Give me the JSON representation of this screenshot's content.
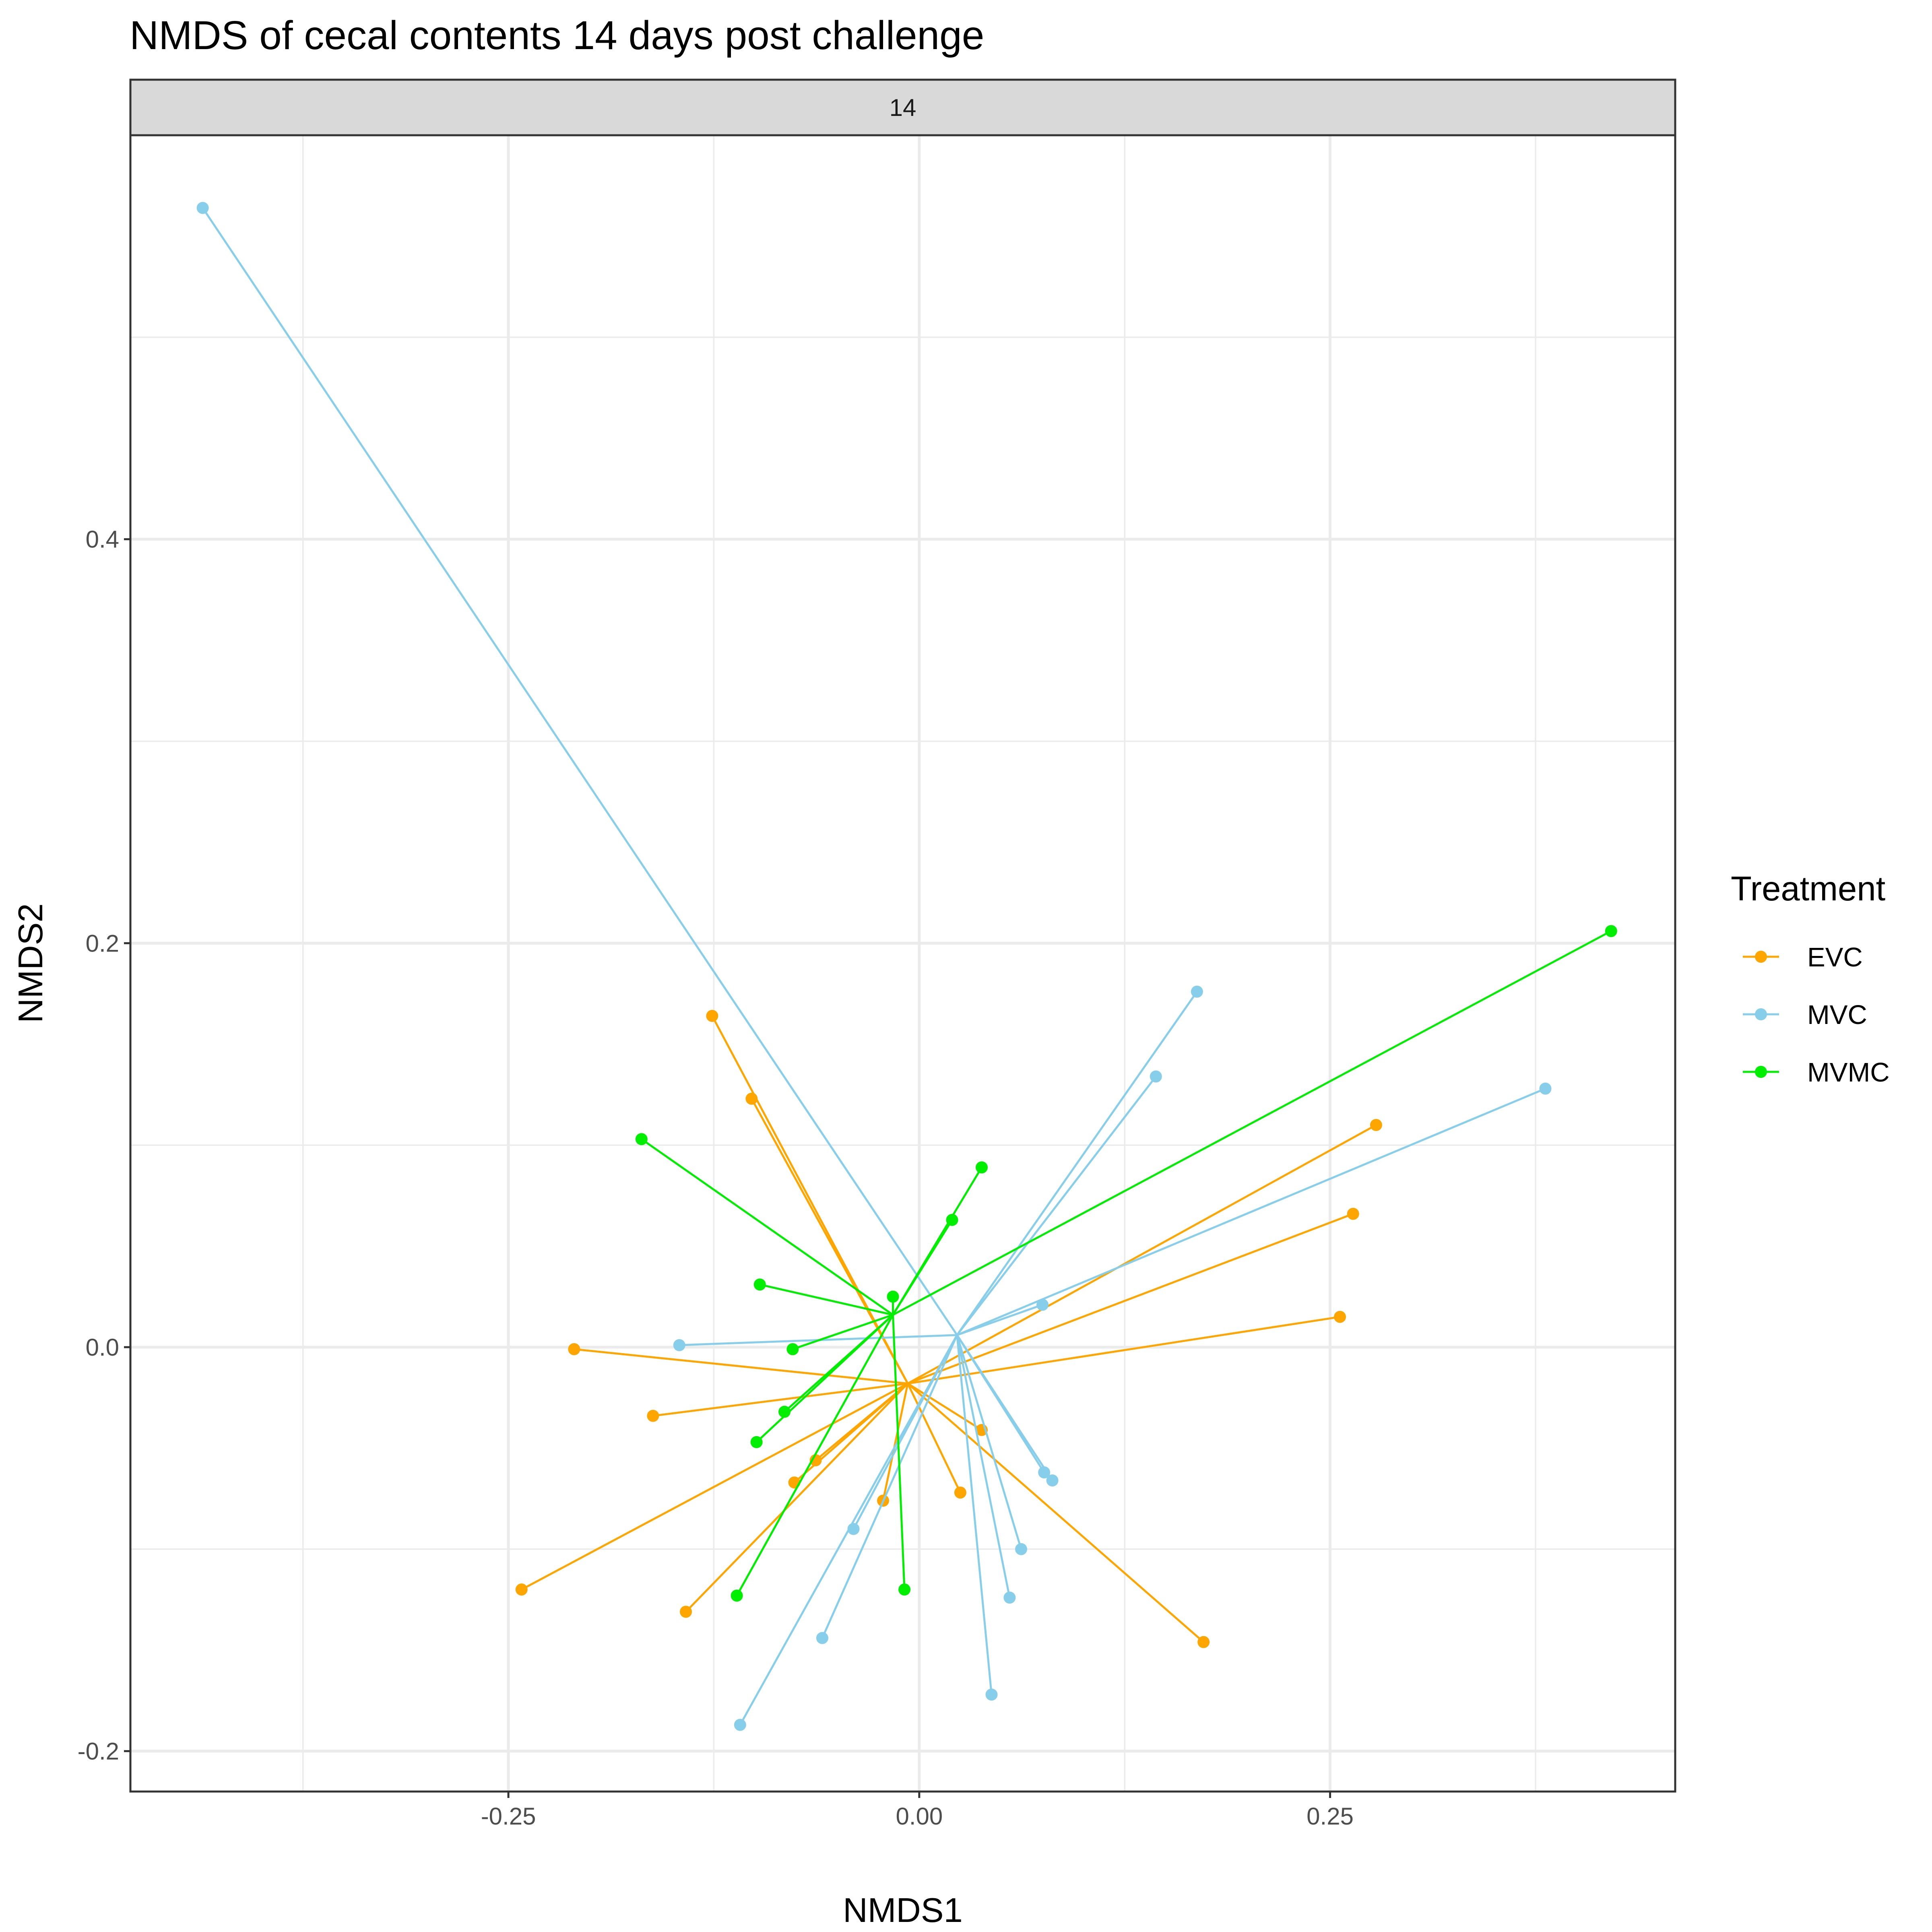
{
  "chart_data": {
    "type": "scatter",
    "title": "NMDS of cecal contents 14 days post challenge",
    "facet_label": "14",
    "xlabel": "NMDS1",
    "ylabel": "NMDS2",
    "xlim": [
      -0.48,
      0.46
    ],
    "ylim": [
      -0.22,
      0.6
    ],
    "x_ticks": [
      -0.25,
      0.0,
      0.25
    ],
    "x_tick_labels": [
      "-0.25",
      "0.00",
      "0.25"
    ],
    "y_ticks": [
      -0.2,
      0.0,
      0.2,
      0.4
    ],
    "y_tick_labels": [
      "-0.2",
      "0.0",
      "0.2",
      "0.4"
    ],
    "grid": true,
    "legend": {
      "title": "Treatment",
      "position": "right"
    },
    "plot_style": "spider (each point joined to its group centroid)",
    "series": [
      {
        "name": "EVC",
        "color": "#FFA500",
        "centroid": [
          -0.007,
          -0.018
        ],
        "points": [
          [
            -0.126,
            0.164
          ],
          [
            -0.102,
            0.123
          ],
          [
            -0.21,
            -0.001
          ],
          [
            -0.162,
            -0.034
          ],
          [
            -0.242,
            -0.12
          ],
          [
            -0.142,
            -0.131
          ],
          [
            -0.063,
            -0.056
          ],
          [
            -0.076,
            -0.067
          ],
          [
            -0.022,
            -0.076
          ],
          [
            0.038,
            -0.041
          ],
          [
            0.025,
            -0.072
          ],
          [
            0.173,
            -0.146
          ],
          [
            0.256,
            0.015
          ],
          [
            0.264,
            0.066
          ],
          [
            0.278,
            0.11
          ]
        ]
      },
      {
        "name": "MVC",
        "color": "#87CEEB",
        "centroid": [
          0.023,
          0.006
        ],
        "points": [
          [
            -0.436,
            0.564
          ],
          [
            -0.146,
            0.001
          ],
          [
            -0.04,
            -0.09
          ],
          [
            -0.059,
            -0.144
          ],
          [
            -0.109,
            -0.187
          ],
          [
            0.044,
            -0.172
          ],
          [
            0.055,
            -0.124
          ],
          [
            0.062,
            -0.1
          ],
          [
            0.076,
            -0.062
          ],
          [
            0.081,
            -0.066
          ],
          [
            0.075,
            0.021
          ],
          [
            0.144,
            0.134
          ],
          [
            0.169,
            0.176
          ],
          [
            0.381,
            0.128
          ]
        ]
      },
      {
        "name": "MVMC",
        "color": "#00EE00",
        "centroid": [
          -0.016,
          0.016
        ],
        "points": [
          [
            -0.169,
            0.103
          ],
          [
            -0.097,
            0.031
          ],
          [
            -0.077,
            -0.001
          ],
          [
            -0.082,
            -0.032
          ],
          [
            -0.099,
            -0.047
          ],
          [
            -0.111,
            -0.123
          ],
          [
            -0.009,
            -0.12
          ],
          [
            -0.016,
            0.025
          ],
          [
            0.02,
            0.063
          ],
          [
            0.038,
            0.089
          ],
          [
            0.421,
            0.206
          ]
        ]
      }
    ]
  }
}
